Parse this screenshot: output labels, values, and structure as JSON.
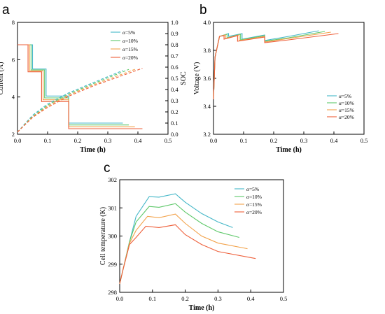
{
  "colors": {
    "alpha5": "#44b7c8",
    "alpha10": "#5ec86a",
    "alpha15": "#f2a24a",
    "alpha20": "#ee5f3a"
  },
  "chart_data": [
    {
      "id": "a",
      "panel_label": "a",
      "type": "line",
      "xlabel": "Time (h)",
      "ylabel": "Current (A)",
      "y2label": "SOC",
      "xlim": [
        0.0,
        0.5
      ],
      "ylim": [
        2,
        8
      ],
      "y2lim": [
        0.0,
        1.0
      ],
      "xticks": [
        "0.0",
        "0.1",
        "0.2",
        "0.3",
        "0.4",
        "0.5"
      ],
      "yticks": [
        "2",
        "4",
        "6",
        "8"
      ],
      "y2ticks": [
        "0.0",
        "0.1",
        "0.2",
        "0.3",
        "0.4",
        "0.5",
        "0.6",
        "0.7",
        "0.8",
        "0.9",
        "1.0"
      ],
      "legend": {
        "location": "top-right",
        "prefix": "α",
        "labels": [
          "=5%",
          "=10%",
          "=15%",
          "=20%"
        ]
      },
      "series_current": [
        {
          "name": "α=5%",
          "color_key": "alpha5",
          "points": [
            [
              0,
              6.8
            ],
            [
              0.05,
              6.8
            ],
            [
              0.05,
              5.5
            ],
            [
              0.095,
              5.5
            ],
            [
              0.095,
              4.05
            ],
            [
              0.17,
              4.05
            ],
            [
              0.17,
              2.6
            ],
            [
              0.35,
              2.6
            ]
          ]
        },
        {
          "name": "α=10%",
          "color_key": "alpha10",
          "points": [
            [
              0,
              6.8
            ],
            [
              0.045,
              6.8
            ],
            [
              0.045,
              5.45
            ],
            [
              0.09,
              5.45
            ],
            [
              0.09,
              3.95
            ],
            [
              0.17,
              3.95
            ],
            [
              0.17,
              2.5
            ],
            [
              0.37,
              2.5
            ]
          ]
        },
        {
          "name": "α=15%",
          "color_key": "alpha15",
          "points": [
            [
              0,
              6.8
            ],
            [
              0.04,
              6.8
            ],
            [
              0.04,
              5.4
            ],
            [
              0.085,
              5.4
            ],
            [
              0.085,
              3.85
            ],
            [
              0.17,
              3.85
            ],
            [
              0.17,
              2.4
            ],
            [
              0.39,
              2.4
            ]
          ]
        },
        {
          "name": "α=20%",
          "color_key": "alpha20",
          "points": [
            [
              0,
              6.8
            ],
            [
              0.035,
              6.8
            ],
            [
              0.035,
              5.35
            ],
            [
              0.08,
              5.35
            ],
            [
              0.08,
              3.75
            ],
            [
              0.17,
              3.75
            ],
            [
              0.17,
              2.3
            ],
            [
              0.415,
              2.3
            ]
          ]
        }
      ],
      "series_soc": [
        {
          "name": "α=5%",
          "color_key": "alpha5",
          "points": [
            [
              0,
              0.02
            ],
            [
              0.05,
              0.17
            ],
            [
              0.1,
              0.27
            ],
            [
              0.17,
              0.37
            ],
            [
              0.25,
              0.46
            ],
            [
              0.35,
              0.57
            ]
          ]
        },
        {
          "name": "α=10%",
          "color_key": "alpha10",
          "points": [
            [
              0,
              0.02
            ],
            [
              0.05,
              0.16
            ],
            [
              0.1,
              0.26
            ],
            [
              0.17,
              0.36
            ],
            [
              0.25,
              0.45
            ],
            [
              0.37,
              0.58
            ]
          ]
        },
        {
          "name": "α=15%",
          "color_key": "alpha15",
          "points": [
            [
              0,
              0.02
            ],
            [
              0.05,
              0.155
            ],
            [
              0.1,
              0.25
            ],
            [
              0.17,
              0.35
            ],
            [
              0.25,
              0.44
            ],
            [
              0.39,
              0.58
            ]
          ]
        },
        {
          "name": "α=20%",
          "color_key": "alpha20",
          "points": [
            [
              0,
              0.02
            ],
            [
              0.05,
              0.15
            ],
            [
              0.1,
              0.24
            ],
            [
              0.17,
              0.34
            ],
            [
              0.25,
              0.43
            ],
            [
              0.415,
              0.59
            ]
          ]
        }
      ]
    },
    {
      "id": "b",
      "panel_label": "b",
      "type": "line",
      "xlabel": "Time (h)",
      "ylabel": "Voltage (V)",
      "xlim": [
        0.0,
        0.5
      ],
      "ylim": [
        3.2,
        4.0
      ],
      "xticks": [
        "0.0",
        "0.1",
        "0.2",
        "0.3",
        "0.4",
        "0.5"
      ],
      "yticks": [
        "3.2",
        "3.4",
        "3.6",
        "3.8",
        "4.0"
      ],
      "legend": {
        "location": "bottom-right",
        "prefix": "α",
        "labels": [
          "=5%",
          "=10%",
          "=15%",
          "=20%"
        ]
      },
      "series": [
        {
          "name": "α=5%",
          "color_key": "alpha5",
          "points": [
            [
              0,
              3.45
            ],
            [
              0.005,
              3.75
            ],
            [
              0.02,
              3.9
            ],
            [
              0.05,
              3.92
            ],
            [
              0.05,
              3.9
            ],
            [
              0.095,
              3.92
            ],
            [
              0.095,
              3.88
            ],
            [
              0.17,
              3.91
            ],
            [
              0.17,
              3.87
            ],
            [
              0.25,
              3.9
            ],
            [
              0.35,
              3.94
            ]
          ]
        },
        {
          "name": "α=10%",
          "color_key": "alpha10",
          "points": [
            [
              0,
              3.45
            ],
            [
              0.005,
              3.75
            ],
            [
              0.02,
              3.9
            ],
            [
              0.045,
              3.915
            ],
            [
              0.045,
              3.89
            ],
            [
              0.09,
              3.915
            ],
            [
              0.09,
              3.875
            ],
            [
              0.17,
              3.905
            ],
            [
              0.17,
              3.865
            ],
            [
              0.25,
              3.89
            ],
            [
              0.37,
              3.935
            ]
          ]
        },
        {
          "name": "α=15%",
          "color_key": "alpha15",
          "points": [
            [
              0,
              3.45
            ],
            [
              0.005,
              3.75
            ],
            [
              0.02,
              3.9
            ],
            [
              0.04,
              3.91
            ],
            [
              0.04,
              3.885
            ],
            [
              0.085,
              3.91
            ],
            [
              0.085,
              3.87
            ],
            [
              0.17,
              3.9
            ],
            [
              0.17,
              3.86
            ],
            [
              0.25,
              3.885
            ],
            [
              0.39,
              3.93
            ]
          ]
        },
        {
          "name": "α=20%",
          "color_key": "alpha20",
          "points": [
            [
              0,
              3.45
            ],
            [
              0.005,
              3.75
            ],
            [
              0.02,
              3.9
            ],
            [
              0.035,
              3.905
            ],
            [
              0.035,
              3.88
            ],
            [
              0.08,
              3.905
            ],
            [
              0.08,
              3.865
            ],
            [
              0.17,
              3.895
            ],
            [
              0.17,
              3.855
            ],
            [
              0.25,
              3.875
            ],
            [
              0.415,
              3.92
            ]
          ]
        }
      ]
    },
    {
      "id": "c",
      "panel_label": "c",
      "type": "line",
      "xlabel": "Time (h)",
      "ylabel": "Cell temperature (K)",
      "xlim": [
        0.0,
        0.5
      ],
      "ylim": [
        298,
        302
      ],
      "xticks": [
        "0.0",
        "0.1",
        "0.2",
        "0.3",
        "0.4",
        "0.5"
      ],
      "yticks": [
        "298",
        "299",
        "300",
        "301",
        "302"
      ],
      "legend": {
        "location": "top-right",
        "prefix": "α",
        "labels": [
          "=5%",
          "=10%",
          "=15%",
          "=20%"
        ]
      },
      "series": [
        {
          "name": "α=5%",
          "color_key": "alpha5",
          "points": [
            [
              0,
              298.3
            ],
            [
              0.01,
              298.8
            ],
            [
              0.03,
              299.8
            ],
            [
              0.05,
              300.7
            ],
            [
              0.09,
              301.4
            ],
            [
              0.12,
              301.38
            ],
            [
              0.17,
              301.5
            ],
            [
              0.2,
              301.2
            ],
            [
              0.25,
              300.8
            ],
            [
              0.3,
              300.5
            ],
            [
              0.345,
              300.3
            ]
          ]
        },
        {
          "name": "α=10%",
          "color_key": "alpha10",
          "points": [
            [
              0,
              298.3
            ],
            [
              0.01,
              298.8
            ],
            [
              0.03,
              299.8
            ],
            [
              0.05,
              300.5
            ],
            [
              0.09,
              301.05
            ],
            [
              0.12,
              301.02
            ],
            [
              0.17,
              301.15
            ],
            [
              0.2,
              300.85
            ],
            [
              0.25,
              300.45
            ],
            [
              0.3,
              300.15
            ],
            [
              0.365,
              299.95
            ]
          ]
        },
        {
          "name": "α=15%",
          "color_key": "alpha15",
          "points": [
            [
              0,
              298.3
            ],
            [
              0.01,
              298.8
            ],
            [
              0.03,
              299.75
            ],
            [
              0.05,
              300.2
            ],
            [
              0.085,
              300.7
            ],
            [
              0.12,
              300.65
            ],
            [
              0.17,
              300.78
            ],
            [
              0.2,
              300.45
            ],
            [
              0.25,
              300.0
            ],
            [
              0.3,
              299.75
            ],
            [
              0.39,
              299.55
            ]
          ]
        },
        {
          "name": "α=20%",
          "color_key": "alpha20",
          "points": [
            [
              0,
              298.3
            ],
            [
              0.01,
              298.8
            ],
            [
              0.03,
              299.7
            ],
            [
              0.05,
              299.95
            ],
            [
              0.08,
              300.35
            ],
            [
              0.12,
              300.3
            ],
            [
              0.17,
              300.4
            ],
            [
              0.2,
              300.05
            ],
            [
              0.25,
              299.7
            ],
            [
              0.3,
              299.45
            ],
            [
              0.415,
              299.2
            ]
          ]
        }
      ]
    }
  ]
}
